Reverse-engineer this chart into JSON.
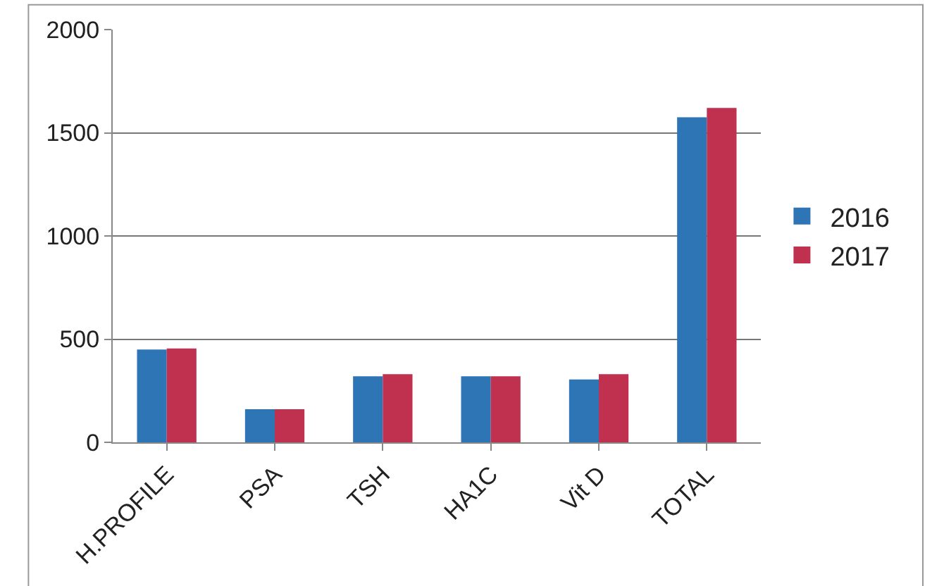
{
  "chart_data": {
    "type": "bar",
    "categories": [
      "H.PROFILE",
      "PSA",
      "TSH",
      "HA1C",
      "Vit D",
      "TOTAL"
    ],
    "series": [
      {
        "name": "2016",
        "color": "#2e75b6",
        "values": [
          450,
          160,
          320,
          320,
          305,
          1575
        ]
      },
      {
        "name": "2017",
        "color": "#c0304f",
        "values": [
          455,
          160,
          330,
          320,
          330,
          1620
        ]
      }
    ],
    "ylim": [
      0,
      2000
    ],
    "yticks": [
      0,
      500,
      1000,
      1500,
      2000
    ],
    "grid": "y",
    "legend": "right"
  }
}
